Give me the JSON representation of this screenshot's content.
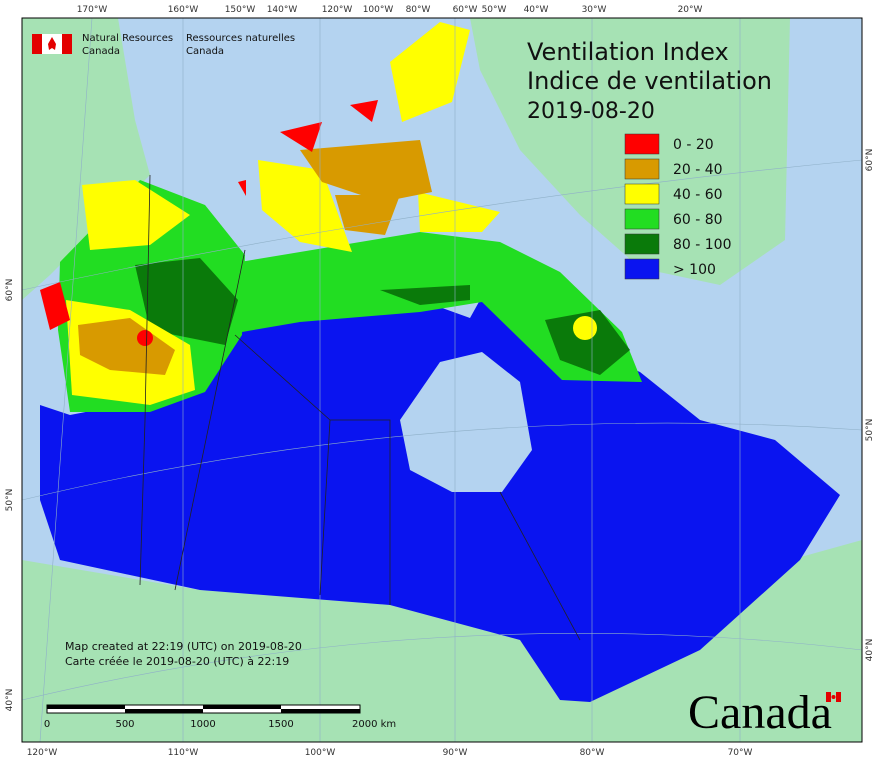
{
  "title": [
    "Ventilation Index",
    "Indice de ventilation",
    "2019-08-20"
  ],
  "header": {
    "agency_en": [
      "Natural Resources",
      "Canada"
    ],
    "agency_fr": [
      "Ressources naturelles",
      "Canada"
    ]
  },
  "legend": [
    {
      "label": "0 - 20",
      "color": "#ff0000"
    },
    {
      "label": "20 - 40",
      "color": "#d89a00"
    },
    {
      "label": "40 - 60",
      "color": "#ffff00"
    },
    {
      "label": "60 - 80",
      "color": "#22dd22"
    },
    {
      "label": "80 - 100",
      "color": "#0a7a0a"
    },
    {
      "label": "> 100",
      "color": "#0a14f0"
    }
  ],
  "graticule": {
    "top": [
      "170°W",
      "160°W",
      "150°W",
      "140°W",
      "120°W",
      "100°W",
      "80°W",
      "60°W",
      "50°W",
      "40°W",
      "30°W",
      "20°W"
    ],
    "bottom": [
      "120°W",
      "110°W",
      "100°W",
      "90°W",
      "80°W",
      "70°W"
    ],
    "left": [
      "60°N",
      "50°N",
      "40°N"
    ],
    "right": [
      "60°N",
      "50°N",
      "40°N"
    ]
  },
  "notes": [
    "Map created at 22:19 (UTC) on 2019-08-20",
    "Carte créée le 2019-08-20 (UTC) à 22:19"
  ],
  "scale_bar": [
    "0",
    "500",
    "1000",
    "1500",
    "2000 km"
  ],
  "wordmark": "Canada"
}
